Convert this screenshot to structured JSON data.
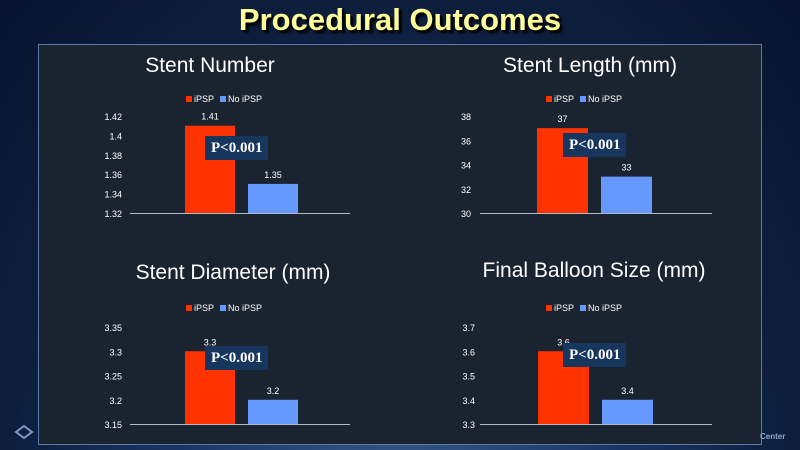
{
  "slide": {
    "title": "Procedural Outcomes",
    "footer_text": "Center"
  },
  "colors": {
    "ipsp": "#ff3300",
    "no_ipsp": "#6699ff",
    "title": "#ffff99",
    "pbox": "#17365d"
  },
  "chart_data": [
    {
      "type": "bar",
      "title": "Stent Number",
      "categories": [
        ""
      ],
      "series": [
        {
          "name": "iPSP",
          "values": [
            1.41
          ]
        },
        {
          "name": "No iPSP",
          "values": [
            1.35
          ]
        }
      ],
      "data_labels": [
        "1.41",
        "1.35"
      ],
      "ylim": [
        1.32,
        1.42
      ],
      "yticks": [
        "1.42",
        "1.4",
        "1.38",
        "1.36",
        "1.34",
        "1.32"
      ],
      "annotation": "P<0.001",
      "legend": "top"
    },
    {
      "type": "bar",
      "title": "Stent Length (mm)",
      "categories": [
        ""
      ],
      "series": [
        {
          "name": "iPSP",
          "values": [
            37
          ]
        },
        {
          "name": "No iPSP",
          "values": [
            33
          ]
        }
      ],
      "data_labels": [
        "37",
        "33"
      ],
      "ylim": [
        30,
        38
      ],
      "yticks": [
        "38",
        "36",
        "34",
        "32",
        "30"
      ],
      "annotation": "P<0.001",
      "legend": "top"
    },
    {
      "type": "bar",
      "title": "Stent Diameter (mm)",
      "categories": [
        ""
      ],
      "series": [
        {
          "name": "iPSP",
          "values": [
            3.3
          ]
        },
        {
          "name": "No iPSP",
          "values": [
            3.2
          ]
        }
      ],
      "data_labels": [
        "3.3",
        "3.2"
      ],
      "ylim": [
        3.15,
        3.35
      ],
      "yticks": [
        "3.35",
        "3.3",
        "3.25",
        "3.2",
        "3.15"
      ],
      "annotation": "P<0.001",
      "legend": "top"
    },
    {
      "type": "bar",
      "title": "Final Balloon Size (mm)",
      "categories": [
        ""
      ],
      "series": [
        {
          "name": "iPSP",
          "values": [
            3.6
          ]
        },
        {
          "name": "No iPSP",
          "values": [
            3.4
          ]
        }
      ],
      "data_labels": [
        "3.6",
        "3.4"
      ],
      "ylim": [
        3.3,
        3.7
      ],
      "yticks": [
        "3.7",
        "3.6",
        "3.5",
        "3.4",
        "3.3"
      ],
      "annotation": "P<0.001",
      "legend": "top"
    }
  ]
}
